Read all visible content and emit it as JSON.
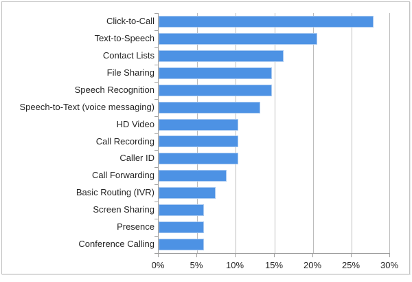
{
  "chart_data": {
    "type": "bar",
    "orientation": "horizontal",
    "title": "",
    "xlabel": "",
    "ylabel": "",
    "categories": [
      "Click-to-Call",
      "Text-to-Speech",
      "Contact Lists",
      "File Sharing",
      "Speech Recognition",
      "Speech-to-Text (voice messaging)",
      "HD Video",
      "Call Recording",
      "Caller ID",
      "Call Forwarding",
      "Basic Routing (IVR)",
      "Screen Sharing",
      "Presence",
      "Conference Calling"
    ],
    "values": [
      27.9,
      20.6,
      16.2,
      14.7,
      14.7,
      13.2,
      10.3,
      10.3,
      10.3,
      8.8,
      7.4,
      5.9,
      5.9,
      5.9
    ],
    "value_unit": "%",
    "xlim": [
      0,
      30
    ],
    "x_tick_values": [
      0,
      5,
      10,
      15,
      20,
      25,
      30
    ],
    "x_tick_labels": [
      "0%",
      "5%",
      "10%",
      "15%",
      "20%",
      "25%",
      "30%"
    ],
    "grid": "vertical",
    "legend": "none",
    "colors": {
      "bar_fill": "#4d92e4",
      "bar_border": "#a9c9f0",
      "gridline": "#bcbcbc",
      "axis_line": "#9e9e9e",
      "text": "#242424",
      "frame_border": "#c2c2c2",
      "background": "#ffffff"
    }
  }
}
